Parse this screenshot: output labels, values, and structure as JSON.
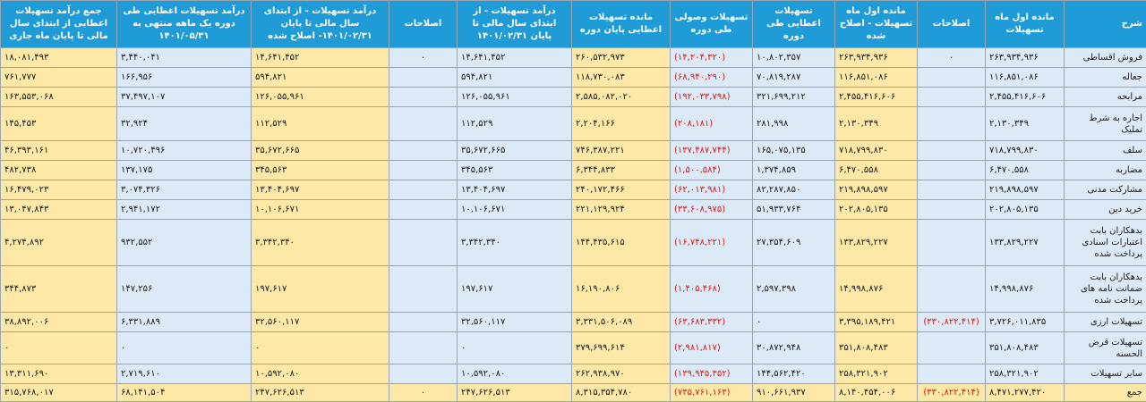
{
  "headers": [
    "شرح",
    "مانده اول ماه تسهیلات",
    "اصلاحات",
    "مانده اول ماه تسهیلات - اصلاح شده",
    "تسهیلات اعطایی طی دوره",
    "تسهیلات وصولی طی دوره",
    "مانده تسهیلات اعطایی پایان دوره",
    "درآمد تسهیلات - از ابتدای سال مالی تا پایان ۱۴۰۱/۰۲/۳۱",
    "اصلاحات",
    "درآمد تسهیلات - از ابتدای سال مالی تا پایان ۱۴۰۱/۰۲/۳۱- اصلاح شده",
    "درآمد تسهیلات اعطایی طی دوره یک ماهه منتهی به ۱۴۰۱/۰۵/۳۱",
    "جمع درآمد تسهیلات اعطایی از ابتدای سال مالی تا پایان ماه جاری"
  ],
  "rows": [
    {
      "label": "فروش اقساطی",
      "c": [
        "۲۶۳,۹۳۴,۹۳۶",
        "۰",
        "۲۶۳,۹۳۴,۹۳۶",
        "۱۰,۸۰۲,۳۵۷",
        "(۱۴,۲۰۴,۳۲۰)",
        "۲۶۰,۵۳۲,۹۷۳",
        "۱۴,۶۴۱,۴۵۲",
        "۰",
        "۱۴,۶۴۱,۴۵۲",
        "۳,۴۴۰,۰۴۱",
        "۱۸,۰۸۱,۴۹۳"
      ]
    },
    {
      "label": "جعاله",
      "c": [
        "۱۱۶,۸۵۱,۰۸۶",
        "",
        "۱۱۶,۸۵۱,۰۸۶",
        "۷۰,۸۱۹,۲۸۷",
        "(۶۸,۹۴۰,۲۹۰)",
        "۱۱۸,۷۳۰,۰۸۳",
        "۵۹۴,۸۲۱",
        "",
        "۵۹۴,۸۲۱",
        "۱۶۶,۹۵۶",
        "۷۶۱,۷۷۷"
      ]
    },
    {
      "label": "مرابحه",
      "c": [
        "۲,۴۵۵,۴۱۶,۶۰۶",
        "",
        "۲,۴۵۵,۴۱۶,۶۰۶",
        "۳۲۱,۶۹۹,۲۱۲",
        "(۱۹۲,۰۳۳,۷۹۸)",
        "۲,۵۸۵,۰۸۲,۰۲۰",
        "۱۲۶,۰۵۵,۹۶۱",
        "",
        "۱۲۶,۰۵۵,۹۶۱",
        "۳۷,۴۹۷,۱۰۷",
        "۱۶۳,۵۵۳,۰۶۸"
      ]
    },
    {
      "label": "اجاره به شرط تملیک",
      "c": [
        "۲,۱۳۰,۳۴۹",
        "",
        "۲,۱۳۰,۳۴۹",
        "۲۸۱,۹۹۸",
        "(۲۰۸,۱۸۱)",
        "۲,۲۰۴,۱۶۶",
        "۱۱۲,۵۲۹",
        "",
        "۱۱۲,۵۲۹",
        "۳۲,۹۲۴",
        "۱۴۵,۴۵۳"
      ]
    },
    {
      "label": "سلف",
      "c": [
        "۷۱۸,۷۹۹,۸۳۰",
        "",
        "۷۱۸,۷۹۹,۸۳۰",
        "۱۶۵,۰۷۵,۱۳۵",
        "(۱۳۷,۴۸۷,۷۴۴)",
        "۷۴۶,۳۸۷,۲۲۱",
        "۳۵,۶۷۲,۶۶۵",
        "",
        "۳۵,۶۷۲,۶۶۵",
        "۱۰,۷۲۰,۴۹۶",
        "۴۶,۳۹۳,۱۶۱"
      ]
    },
    {
      "label": "مضاربه",
      "c": [
        "۶,۴۷۰,۵۵۸",
        "",
        "۶,۴۷۰,۵۵۸",
        "۱,۳۷۴,۸۵۹",
        "(۱,۵۰۰,۵۸۴)",
        "۶,۳۴۴,۸۳۳",
        "۳۴۵,۵۶۳",
        "",
        "۳۴۵,۵۶۳",
        "۱۳۷,۱۷۵",
        "۴۸۲,۷۳۸"
      ]
    },
    {
      "label": "مشارکت مدنی",
      "c": [
        "۲۱۹,۸۹۸,۵۹۷",
        "",
        "۲۱۹,۸۹۸,۵۹۷",
        "۸۲,۲۸۷,۸۵۰",
        "(۶۲,۰۱۳,۹۸۱)",
        "۲۴۰,۱۷۲,۴۶۶",
        "۱۳,۴۰۴,۶۹۷",
        "",
        "۱۳,۴۰۴,۶۹۷",
        "۳,۰۷۴,۳۲۶",
        "۱۶,۴۷۹,۰۲۳"
      ]
    },
    {
      "label": "خرید دین",
      "c": [
        "۲۰۲,۸۰۵,۱۳۵",
        "",
        "۲۰۲,۸۰۵,۱۳۵",
        "۵۱,۹۳۳,۷۶۴",
        "(۳۳,۶۰۸,۹۷۵)",
        "۲۲۱,۱۲۹,۹۲۴",
        "۱۰,۱۰۶,۶۷۱",
        "",
        "۱۰,۱۰۶,۶۷۱",
        "۲,۹۴۱,۱۷۲",
        "۱۳,۰۴۷,۸۴۳"
      ]
    },
    {
      "label": "بدهکاران بابت اعتبارات اسنادی پرداخت شده",
      "c": [
        "۱۳۳,۸۲۹,۲۲۷",
        "",
        "۱۳۳,۸۲۹,۲۲۷",
        "۲۷,۳۵۴,۶۰۹",
        "(۱۶,۷۴۸,۲۲۱)",
        "۱۴۴,۴۳۵,۶۱۵",
        "۳,۳۴۲,۳۴۰",
        "",
        "۳,۳۴۲,۳۴۰",
        "۹۳۲,۵۵۲",
        "۴,۲۷۴,۸۹۲"
      ]
    },
    {
      "label": "بدهکاران بابت ضمانت نامه های پرداخت شده",
      "c": [
        "۱۴,۹۹۸,۸۷۶",
        "",
        "۱۴,۹۹۸,۸۷۶",
        "۲,۵۹۷,۳۹۸",
        "(۱,۴۰۵,۴۶۸)",
        "۱۶,۱۹۰,۸۰۶",
        "۱۹۷,۶۱۷",
        "",
        "۱۹۷,۶۱۷",
        "۱۴۷,۲۵۶",
        "۳۴۴,۸۷۳"
      ]
    },
    {
      "label": "تسهیلات ارزی",
      "c": [
        "۳,۷۲۶,۰۱۱,۸۳۵",
        "(۳۳۰,۸۲۲,۴۱۴)",
        "۳,۳۹۵,۱۸۹,۴۲۱",
        "۰",
        "(۶۳,۶۸۳,۳۳۲)",
        "۳,۳۳۱,۵۰۶,۰۸۹",
        "۳۲,۵۶۰,۱۱۷",
        "",
        "۳۲,۵۶۰,۱۱۷",
        "۶,۳۳۱,۸۸۹",
        "۳۸,۸۹۲,۰۰۶"
      ]
    },
    {
      "label": "تسهیلات قرض الحسنه",
      "c": [
        "۳۵۱,۸۰۸,۴۸۳",
        "",
        "۳۵۱,۸۰۸,۴۸۳",
        "۳۰,۸۷۲,۹۴۸",
        "(۲,۹۸۱,۸۱۷)",
        "۳۷۹,۶۹۹,۶۱۴",
        "۰",
        "",
        "۰",
        "۰",
        "۰"
      ]
    },
    {
      "label": "سایر تسهیلات",
      "c": [
        "۲۵۸,۳۲۱,۹۰۲",
        "",
        "۲۵۸,۳۲۱,۹۰۲",
        "۱۴۴,۵۶۲,۴۲۰",
        "(۱۳۹,۹۴۵,۳۵۲)",
        "۲۶۲,۹۳۸,۹۷۰",
        "۱۰,۵۹۲,۰۸۰",
        "",
        "۱۰,۵۹۲,۰۸۰",
        "۲,۷۱۹,۶۱۰",
        "۱۳,۳۱۱,۶۹۰"
      ]
    },
    {
      "label": "جمع",
      "c": [
        "۸,۴۷۱,۲۷۷,۴۲۰",
        "(۳۳۰,۸۲۲,۴۱۴)",
        "۸,۱۴۰,۴۵۴,۰۰۶",
        "۹۱۰,۶۶۱,۹۳۷",
        "(۷۳۵,۷۶۱,۱۶۳)",
        "۸,۳۱۵,۳۵۴,۷۸۰",
        "۲۴۷,۶۲۶,۵۱۳",
        "۰",
        "۲۴۷,۶۲۶,۵۱۳",
        "۶۸,۱۴۱,۵۰۴",
        "۳۱۵,۷۶۸,۰۱۷"
      ]
    }
  ],
  "colors": {
    "header": "#1f9bd7",
    "yellow": "#fde8a8",
    "blue": "#dce9f6",
    "negative": "#d61a1a"
  }
}
